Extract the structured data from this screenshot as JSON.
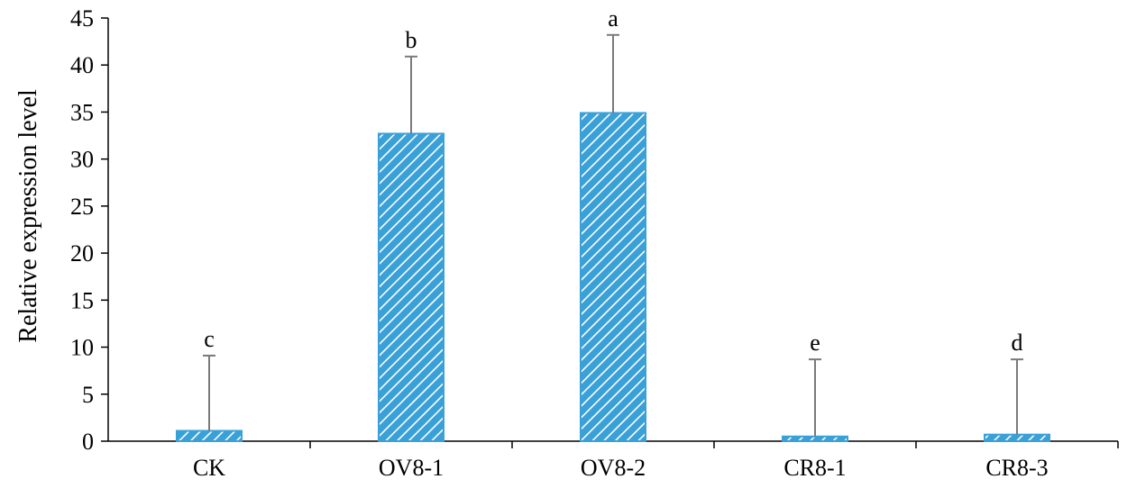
{
  "chart_data": {
    "type": "bar",
    "title": "",
    "xlabel": "",
    "ylabel": "Relative expression level",
    "ylim": [
      0,
      45
    ],
    "yticks": [
      "0",
      "5",
      "10",
      "15",
      "20",
      "25",
      "30",
      "35",
      "40",
      "45"
    ],
    "categories": [
      "CK",
      "OV8-1",
      "OV8-2",
      "CR8-1",
      "CR8-3"
    ],
    "series": [
      {
        "values": [
          1.1,
          32.7,
          34.9,
          0.5,
          0.7
        ],
        "error_upper": [
          8.0,
          8.2,
          8.3,
          8.2,
          8.0
        ],
        "significance": [
          "c",
          "b",
          "a",
          "e",
          "d"
        ]
      }
    ],
    "grid": false,
    "legend": "none",
    "colors": {
      "bar_fill": "#3aa0d8",
      "bar_stripe": "#ffffff",
      "axis": "#000000",
      "error_bar": "#7a7a7a"
    }
  }
}
